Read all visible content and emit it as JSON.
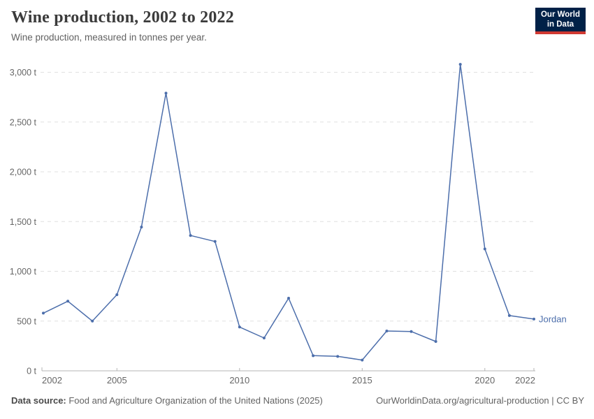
{
  "header": {
    "title": "Wine production, 2002 to 2022",
    "subtitle": "Wine production, measured in tonnes per year.",
    "logo_line1": "Our World",
    "logo_line2": "in Data"
  },
  "chart_data": {
    "type": "line",
    "title": "Wine production, 2002 to 2022",
    "xlabel": "",
    "ylabel": "tonnes",
    "unit": "t",
    "grid": true,
    "legend_position": "end-of-line",
    "xlim": [
      2002,
      2022
    ],
    "ylim": [
      0,
      3000
    ],
    "x": [
      2002,
      2003,
      2004,
      2005,
      2006,
      2007,
      2008,
      2009,
      2010,
      2011,
      2012,
      2013,
      2014,
      2015,
      2016,
      2017,
      2018,
      2019,
      2020,
      2021,
      2022
    ],
    "series": [
      {
        "name": "Jordan",
        "color": "#4C6EAB",
        "values": [
          580,
          700,
          500,
          765,
          1445,
          2790,
          1360,
          1300,
          440,
          330,
          730,
          152,
          145,
          108,
          400,
          395,
          295,
          3080,
          1225,
          555,
          520
        ]
      }
    ],
    "xticks": [
      {
        "value": 2002,
        "label": "2002"
      },
      {
        "value": 2005,
        "label": "2005"
      },
      {
        "value": 2010,
        "label": "2010"
      },
      {
        "value": 2015,
        "label": "2015"
      },
      {
        "value": 2020,
        "label": "2020"
      },
      {
        "value": 2022,
        "label": "2022"
      }
    ],
    "yticks": [
      {
        "value": 0,
        "label": "0 t"
      },
      {
        "value": 500,
        "label": "500 t"
      },
      {
        "value": 1000,
        "label": "1,000 t"
      },
      {
        "value": 1500,
        "label": "1,500 t"
      },
      {
        "value": 2000,
        "label": "2,000 t"
      },
      {
        "value": 2500,
        "label": "2,500 t"
      },
      {
        "value": 3000,
        "label": "3,000 t"
      }
    ]
  },
  "footer": {
    "datasource_label": "Data source:",
    "datasource_text": " Food and Agriculture Organization of the United Nations (2025)",
    "license_text": "OurWorldinData.org/agricultural-production | CC BY"
  },
  "colors": {
    "series": "#4C6EAB",
    "gridline": "#e0e0e0",
    "axis": "#b5b5b5",
    "axis_text": "#666666",
    "logo_bg": "#002147",
    "logo_stripe": "#d13932"
  }
}
